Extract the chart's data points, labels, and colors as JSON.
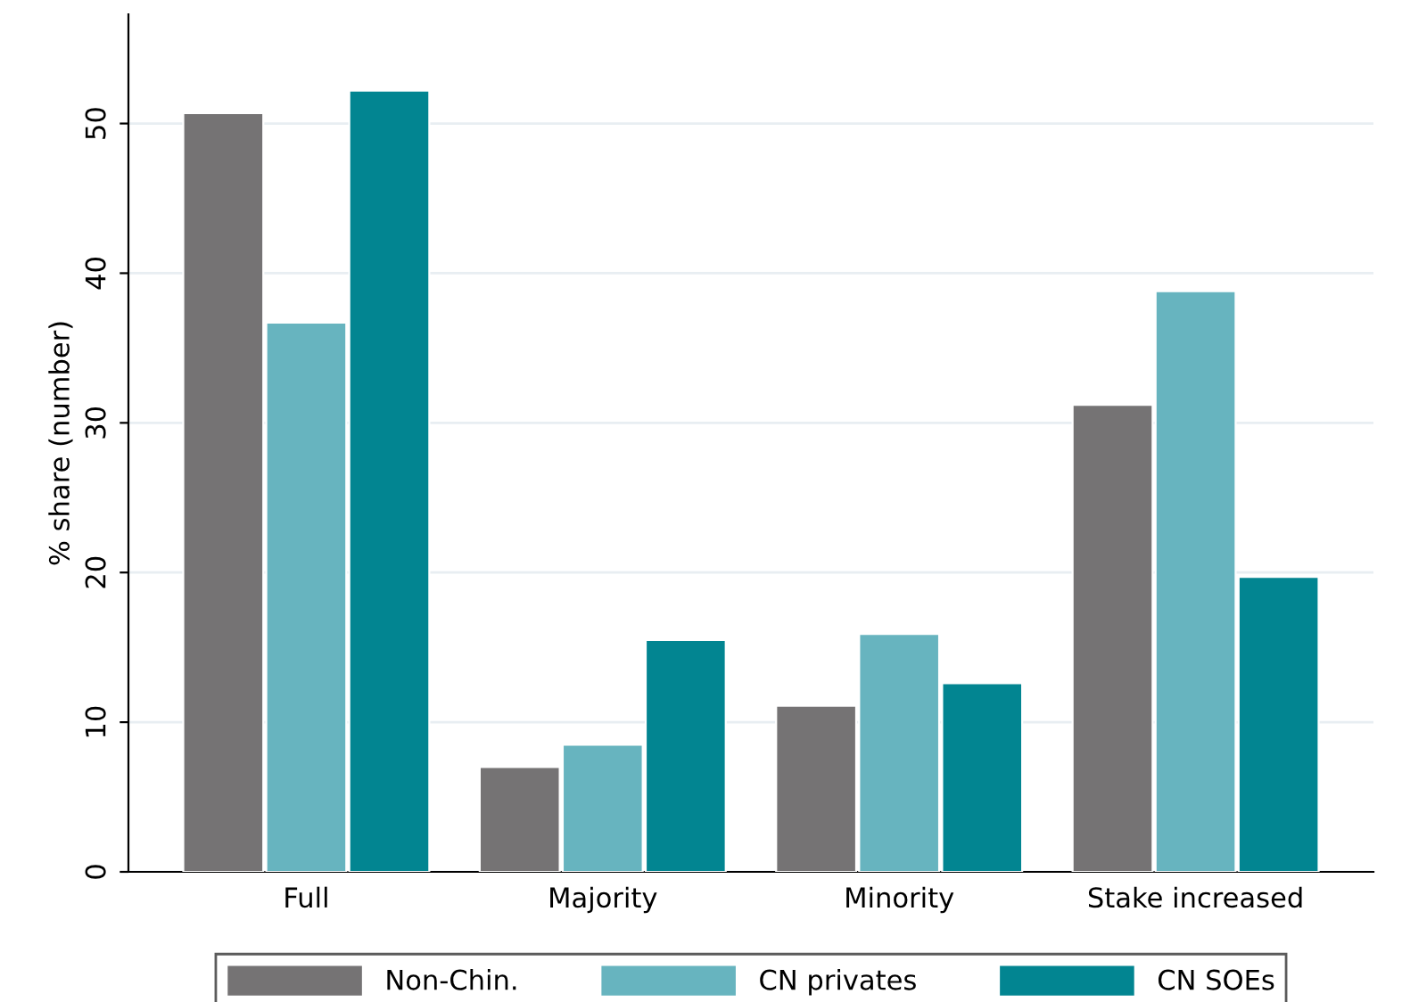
{
  "chart_data": {
    "type": "bar",
    "ylabel": "% share (number)",
    "categories": [
      "Full",
      "Majority",
      "Minority",
      "Stake increased"
    ],
    "series": [
      {
        "name": "Non-Chin.",
        "color": "#757374",
        "values": [
          50.7,
          7.0,
          11.1,
          31.2
        ]
      },
      {
        "name": "CN privates",
        "color": "#67b4bf",
        "values": [
          36.7,
          8.5,
          15.9,
          38.8
        ]
      },
      {
        "name": "CN SOEs",
        "color": "#028591",
        "values": [
          52.2,
          15.5,
          12.6,
          19.7
        ]
      }
    ],
    "ylim": [
      0,
      57.3
    ],
    "yticks": [
      0,
      10,
      20,
      30,
      40,
      50
    ],
    "grid": "y",
    "legend": "bottom"
  }
}
